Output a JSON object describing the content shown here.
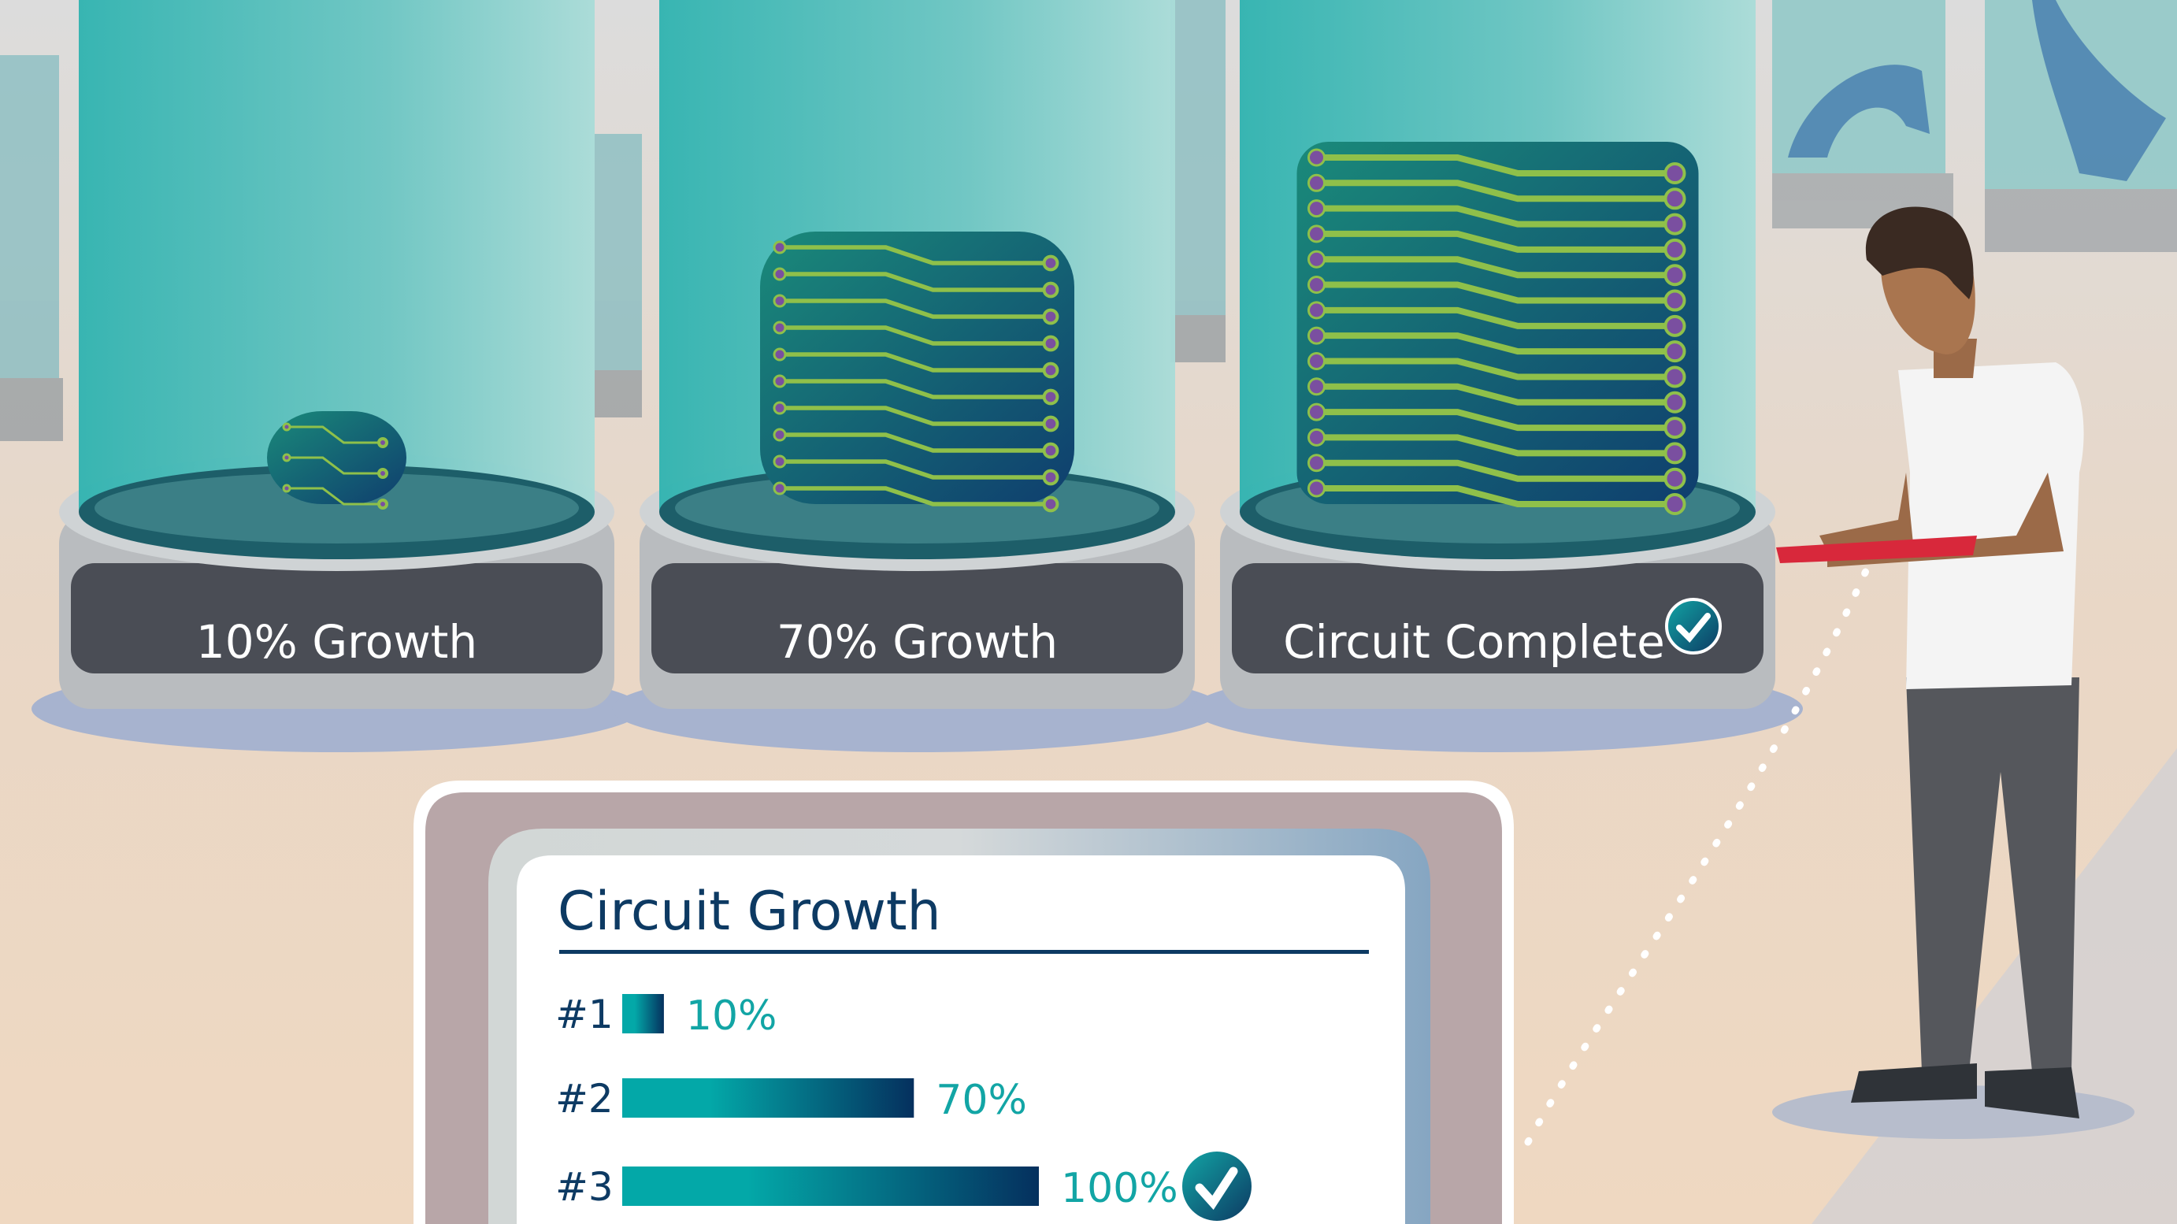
{
  "jars": [
    {
      "label": "10% Growth",
      "growth": 10,
      "complete": false
    },
    {
      "label": "70% Growth",
      "growth": 70,
      "complete": false
    },
    {
      "label": "Circuit Complete",
      "growth": 100,
      "complete": true,
      "badge_icon": "check-circle-icon"
    }
  ],
  "colors": {
    "teal": "#12a5a5",
    "navy": "#0d3a63",
    "circuit_green": "#8fc04a",
    "circuit_purple": "#7a4fa0",
    "label_band": "#4a4d55"
  },
  "chart_data": {
    "type": "bar",
    "title": "Circuit Growth",
    "categories": [
      "#1",
      "#2",
      "#3"
    ],
    "values": [
      10,
      70,
      100
    ],
    "value_labels": [
      "10%",
      "70%",
      "100%"
    ],
    "orientation": "horizontal",
    "xlim": [
      0,
      100
    ],
    "complete_marker": {
      "category": "#3",
      "icon": "check-circle-icon"
    }
  }
}
